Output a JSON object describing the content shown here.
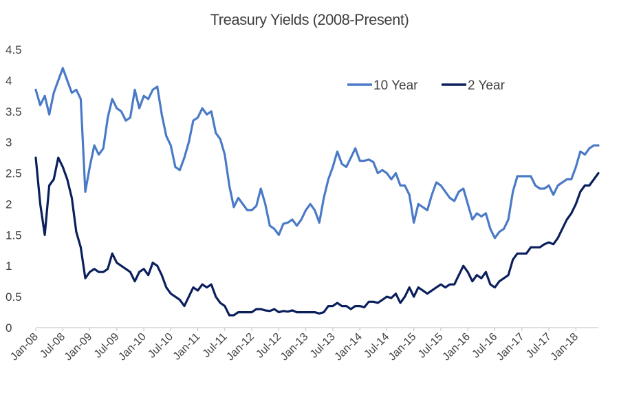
{
  "chart_data": {
    "type": "line",
    "title": "Treasury Yields (2008-Present)",
    "xlabel": "",
    "ylabel": "",
    "ylim": [
      0,
      4.5
    ],
    "yticks": [
      "0",
      "0.5",
      "1",
      "1.5",
      "2",
      "2.5",
      "3",
      "3.5",
      "4",
      "4.5"
    ],
    "xlim": [
      "2008-01",
      "2018-06"
    ],
    "xticks": [
      "Jan-08",
      "Jul-08",
      "Jan-09",
      "Jul-09",
      "Jan-10",
      "Jul-10",
      "Jan-11",
      "Jul-11",
      "Jan-12",
      "Jul-12",
      "Jan-13",
      "Jul-13",
      "Jan-14",
      "Jul-14",
      "Jan-15",
      "Jul-15",
      "Jan-16",
      "Jul-16",
      "Jan-17",
      "Jul-17",
      "Jan-18"
    ],
    "grid": false,
    "legend_position": "top-right",
    "x": [
      "2008-01",
      "2008-02",
      "2008-03",
      "2008-04",
      "2008-05",
      "2008-06",
      "2008-07",
      "2008-08",
      "2008-09",
      "2008-10",
      "2008-11",
      "2008-12",
      "2009-01",
      "2009-02",
      "2009-03",
      "2009-04",
      "2009-05",
      "2009-06",
      "2009-07",
      "2009-08",
      "2009-09",
      "2009-10",
      "2009-11",
      "2009-12",
      "2010-01",
      "2010-02",
      "2010-03",
      "2010-04",
      "2010-05",
      "2010-06",
      "2010-07",
      "2010-08",
      "2010-09",
      "2010-10",
      "2010-11",
      "2010-12",
      "2011-01",
      "2011-02",
      "2011-03",
      "2011-04",
      "2011-05",
      "2011-06",
      "2011-07",
      "2011-08",
      "2011-09",
      "2011-10",
      "2011-11",
      "2011-12",
      "2012-01",
      "2012-02",
      "2012-03",
      "2012-04",
      "2012-05",
      "2012-06",
      "2012-07",
      "2012-08",
      "2012-09",
      "2012-10",
      "2012-11",
      "2012-12",
      "2013-01",
      "2013-02",
      "2013-03",
      "2013-04",
      "2013-05",
      "2013-06",
      "2013-07",
      "2013-08",
      "2013-09",
      "2013-10",
      "2013-11",
      "2013-12",
      "2014-01",
      "2014-02",
      "2014-03",
      "2014-04",
      "2014-05",
      "2014-06",
      "2014-07",
      "2014-08",
      "2014-09",
      "2014-10",
      "2014-11",
      "2014-12",
      "2015-01",
      "2015-02",
      "2015-03",
      "2015-04",
      "2015-05",
      "2015-06",
      "2015-07",
      "2015-08",
      "2015-09",
      "2015-10",
      "2015-11",
      "2015-12",
      "2016-01",
      "2016-02",
      "2016-03",
      "2016-04",
      "2016-05",
      "2016-06",
      "2016-07",
      "2016-08",
      "2016-09",
      "2016-10",
      "2016-11",
      "2016-12",
      "2017-01",
      "2017-02",
      "2017-03",
      "2017-04",
      "2017-05",
      "2017-06",
      "2017-07",
      "2017-08",
      "2017-09",
      "2017-10",
      "2017-11",
      "2017-12",
      "2018-01",
      "2018-02",
      "2018-03",
      "2018-04",
      "2018-05",
      "2018-06"
    ],
    "series": [
      {
        "name": "10 Year",
        "color": "#4a7ac7",
        "values": [
          3.85,
          3.6,
          3.75,
          3.45,
          3.8,
          4.0,
          4.2,
          4.0,
          3.8,
          3.85,
          3.7,
          2.2,
          2.6,
          2.95,
          2.8,
          2.9,
          3.4,
          3.7,
          3.55,
          3.5,
          3.35,
          3.4,
          3.85,
          3.55,
          3.75,
          3.7,
          3.85,
          3.9,
          3.45,
          3.1,
          2.95,
          2.6,
          2.55,
          2.75,
          3.0,
          3.35,
          3.4,
          3.55,
          3.45,
          3.5,
          3.15,
          3.05,
          2.8,
          2.3,
          1.95,
          2.1,
          2.0,
          1.9,
          1.9,
          1.97,
          2.25,
          2.0,
          1.65,
          1.6,
          1.5,
          1.68,
          1.7,
          1.75,
          1.65,
          1.75,
          1.9,
          2.0,
          1.9,
          1.7,
          2.1,
          2.4,
          2.6,
          2.85,
          2.65,
          2.6,
          2.75,
          2.9,
          2.7,
          2.7,
          2.72,
          2.68,
          2.5,
          2.55,
          2.5,
          2.4,
          2.5,
          2.3,
          2.3,
          2.15,
          1.7,
          2.0,
          1.95,
          1.9,
          2.15,
          2.35,
          2.3,
          2.2,
          2.1,
          2.05,
          2.2,
          2.25,
          2.0,
          1.75,
          1.85,
          1.8,
          1.85,
          1.6,
          1.45,
          1.55,
          1.6,
          1.75,
          2.2,
          2.45,
          2.45,
          2.45,
          2.45,
          2.3,
          2.25,
          2.25,
          2.3,
          2.15,
          2.3,
          2.35,
          2.4,
          2.4,
          2.6,
          2.85,
          2.8,
          2.9,
          2.95,
          2.95
        ]
      },
      {
        "name": "2 Year",
        "color": "#0a1f5c",
        "values": [
          2.75,
          2.0,
          1.5,
          2.3,
          2.4,
          2.75,
          2.6,
          2.4,
          2.1,
          1.55,
          1.3,
          0.8,
          0.9,
          0.95,
          0.9,
          0.9,
          0.95,
          1.2,
          1.05,
          1.0,
          0.95,
          0.9,
          0.75,
          0.9,
          0.95,
          0.85,
          1.05,
          1.0,
          0.85,
          0.65,
          0.55,
          0.5,
          0.45,
          0.35,
          0.5,
          0.65,
          0.6,
          0.7,
          0.65,
          0.7,
          0.5,
          0.4,
          0.35,
          0.2,
          0.2,
          0.25,
          0.25,
          0.25,
          0.25,
          0.3,
          0.3,
          0.28,
          0.27,
          0.3,
          0.25,
          0.27,
          0.26,
          0.28,
          0.25,
          0.25,
          0.25,
          0.25,
          0.25,
          0.23,
          0.25,
          0.35,
          0.35,
          0.4,
          0.35,
          0.35,
          0.3,
          0.35,
          0.35,
          0.33,
          0.42,
          0.42,
          0.4,
          0.45,
          0.5,
          0.48,
          0.55,
          0.4,
          0.5,
          0.65,
          0.5,
          0.65,
          0.6,
          0.55,
          0.6,
          0.65,
          0.7,
          0.65,
          0.7,
          0.7,
          0.85,
          1.0,
          0.9,
          0.75,
          0.85,
          0.8,
          0.9,
          0.7,
          0.65,
          0.75,
          0.8,
          0.85,
          1.1,
          1.2,
          1.2,
          1.2,
          1.3,
          1.3,
          1.3,
          1.35,
          1.38,
          1.35,
          1.45,
          1.6,
          1.75,
          1.85,
          2.0,
          2.2,
          2.3,
          2.3,
          2.4,
          2.5
        ]
      }
    ]
  }
}
